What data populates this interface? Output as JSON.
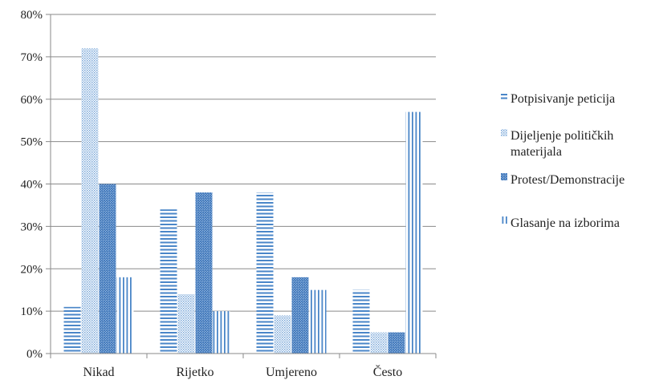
{
  "chart_data": {
    "type": "bar",
    "categories": [
      "Nikad",
      "Rijetko",
      "Umjereno",
      "Često"
    ],
    "series": [
      {
        "name": "Potpisivanje peticija",
        "values": [
          11,
          34,
          38,
          15
        ],
        "pattern": "hlines"
      },
      {
        "name": "Dijeljenje političkih materijala",
        "values": [
          72,
          14,
          9,
          5
        ],
        "pattern": "dots"
      },
      {
        "name": "Protest/Demonstracije",
        "values": [
          40,
          38,
          18,
          5
        ],
        "pattern": "dense"
      },
      {
        "name": "Glasanje na izborima",
        "values": [
          18,
          10,
          15,
          57
        ],
        "pattern": "vlines"
      }
    ],
    "ylim": [
      0,
      80
    ],
    "yticks": [
      0,
      10,
      20,
      30,
      40,
      50,
      60,
      70,
      80
    ],
    "ytick_labels": [
      "0%",
      "10%",
      "20%",
      "30%",
      "40%",
      "50%",
      "60%",
      "70%",
      "80%"
    ],
    "title": "",
    "xlabel": "",
    "ylabel": "",
    "grid": true,
    "legend_position": "right",
    "color": "#4a86c8"
  }
}
